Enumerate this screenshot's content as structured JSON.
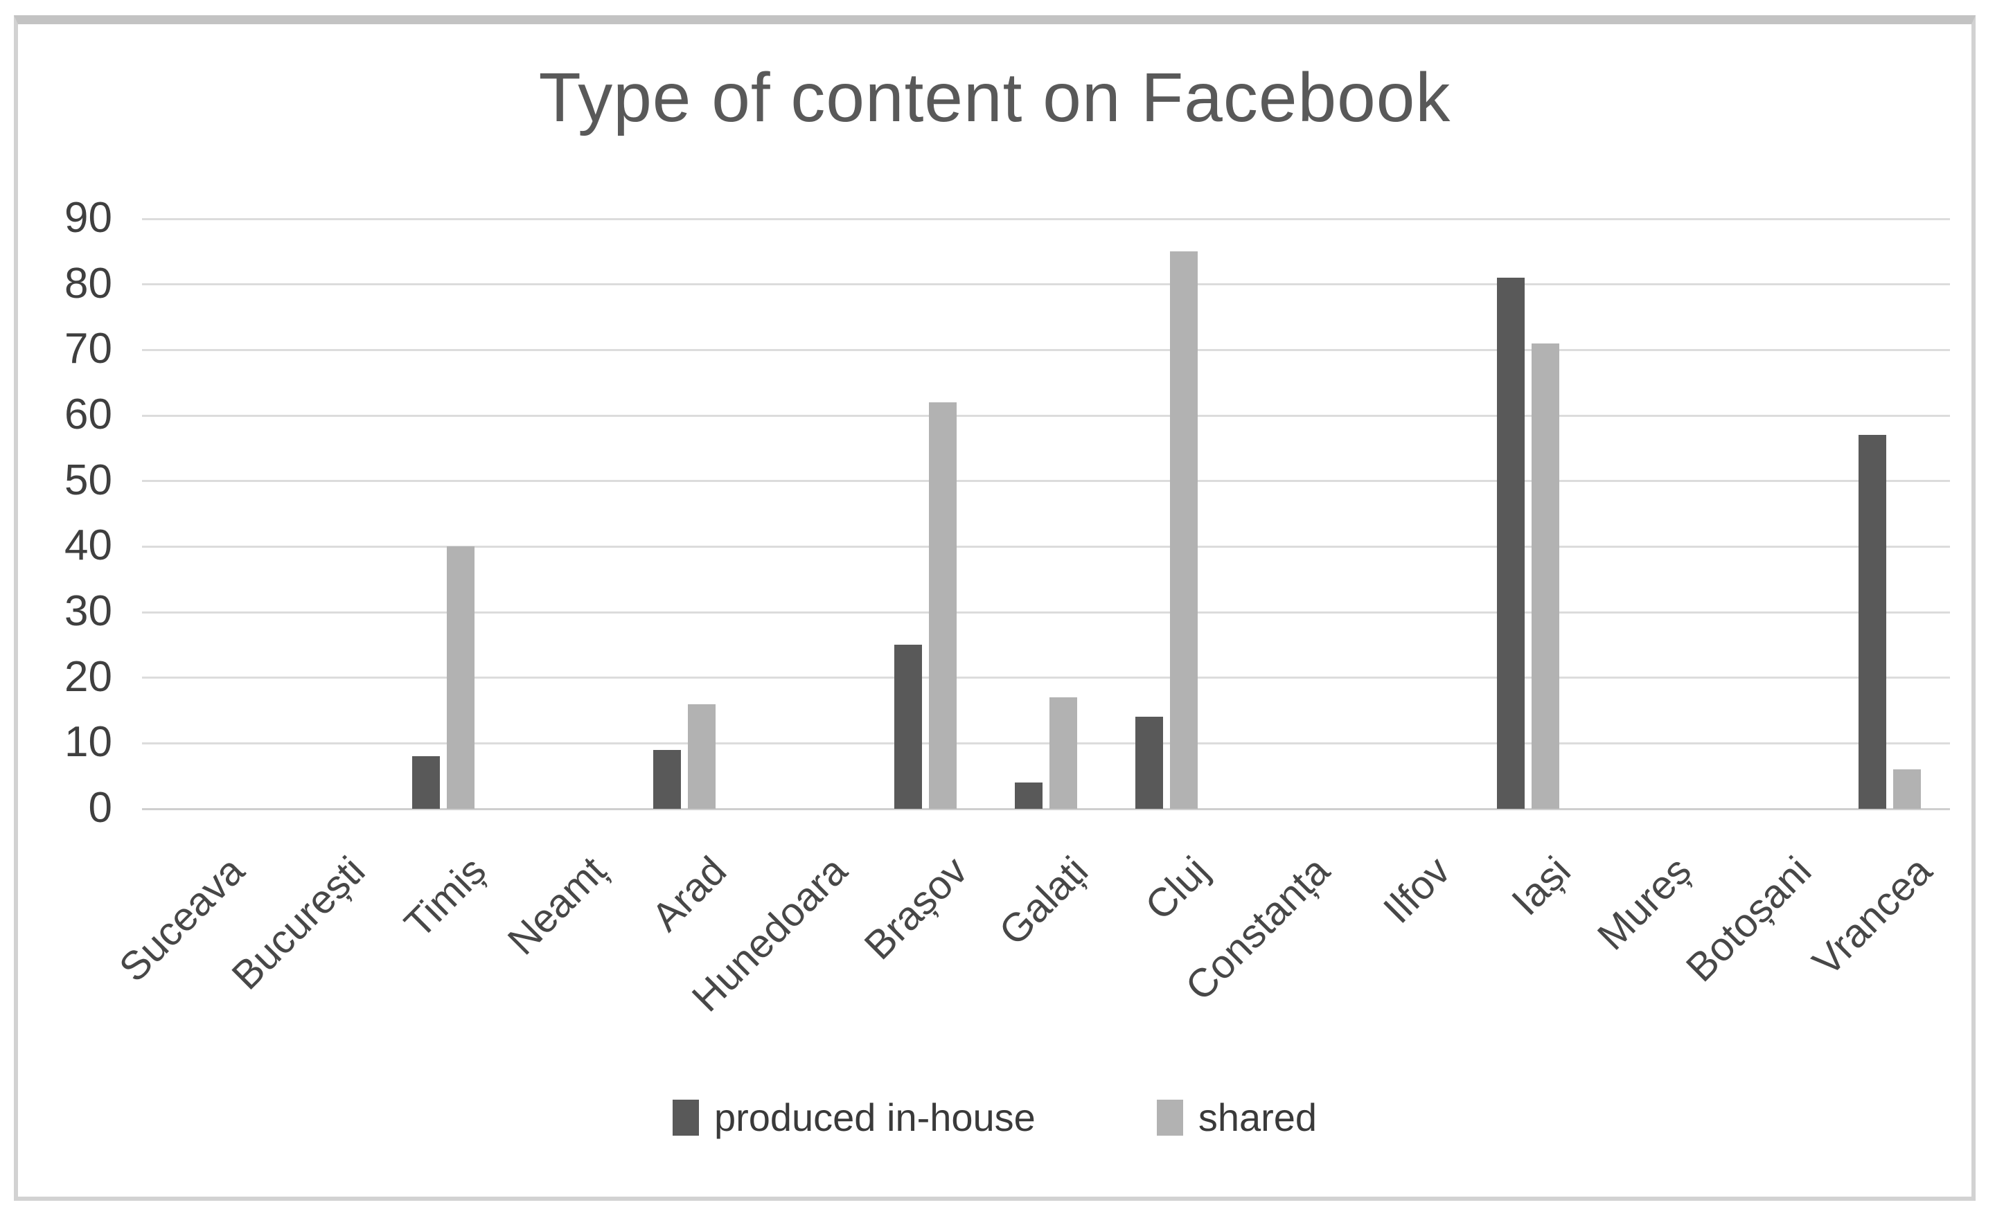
{
  "chart_data": {
    "type": "bar",
    "title": "Type of content on Facebook",
    "categories": [
      "Suceava",
      "București",
      "Timiș",
      "Neamț",
      "Arad",
      "Hunedoara",
      "Brașov",
      "Galați",
      "Cluj",
      "Constanța",
      "Ilfov",
      "Iași",
      "Mureș",
      "Botoșani",
      "Vrancea"
    ],
    "series": [
      {
        "name": "produced in-house",
        "color": "#595959",
        "values": [
          0,
          0,
          8,
          0,
          9,
          0,
          25,
          4,
          14,
          0,
          0,
          81,
          0,
          0,
          57
        ]
      },
      {
        "name": "shared",
        "color": "#b2b2b2",
        "values": [
          0,
          0,
          40,
          0,
          16,
          0,
          62,
          17,
          85,
          0,
          0,
          71,
          0,
          0,
          6
        ]
      }
    ],
    "xlabel": "",
    "ylabel": "",
    "ylim": [
      0,
      90
    ],
    "yticks": [
      90,
      80,
      70,
      60,
      50,
      40,
      30,
      20,
      10,
      0
    ],
    "grid": true,
    "x_label_rotation_deg": -45,
    "legend_position": "bottom",
    "gridline_color": "#dcdcdc",
    "title_color": "#595959",
    "axis_text_color": "#3f3f3f"
  }
}
